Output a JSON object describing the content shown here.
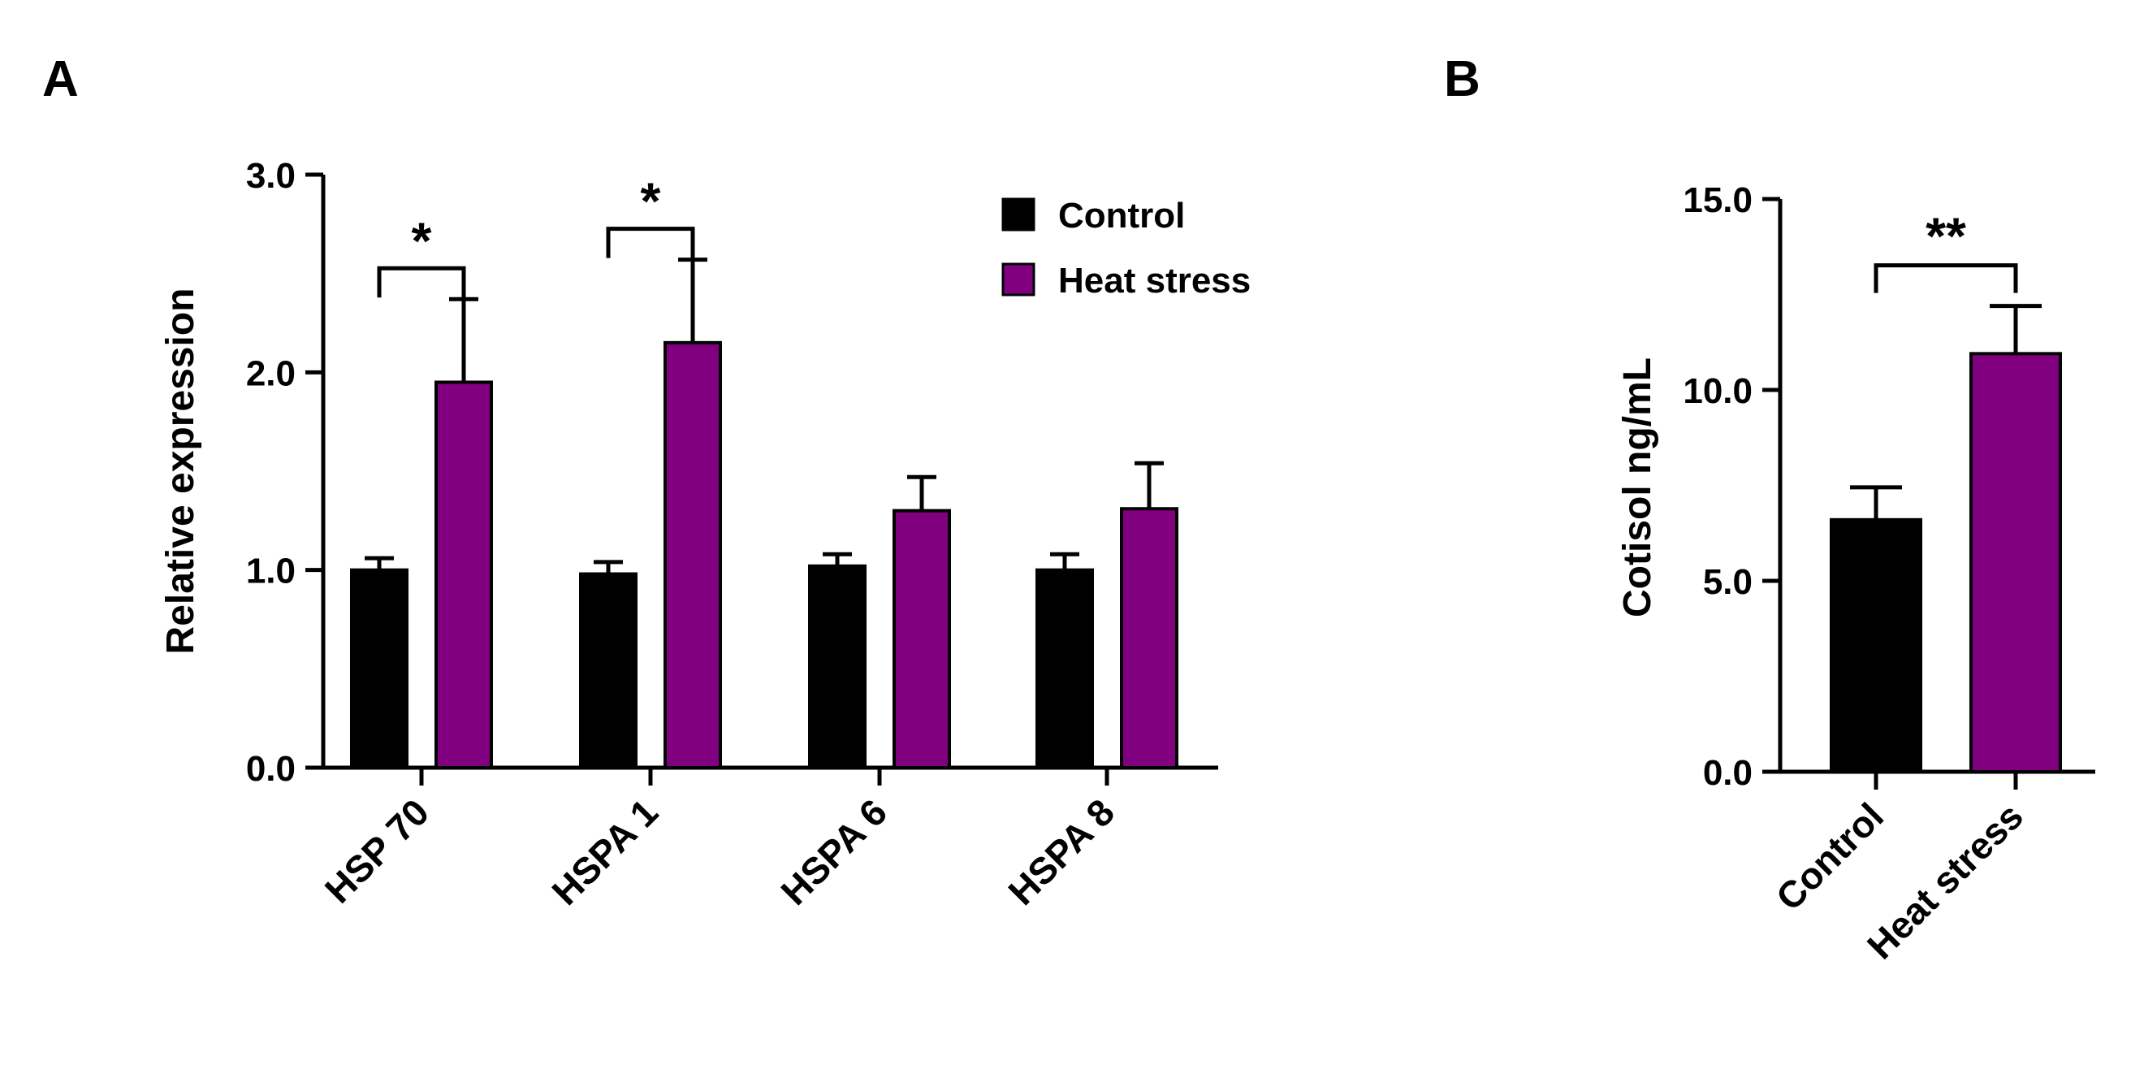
{
  "panels": [
    {
      "label": "A"
    },
    {
      "label": "B"
    }
  ],
  "colors": {
    "control": "#000000",
    "heat_stress": "#800080",
    "axis": "#000000"
  },
  "chart_data": [
    {
      "id": "A",
      "type": "bar",
      "title": "",
      "xlabel": "",
      "ylabel": "Relative expression",
      "ylim": [
        0,
        3.0
      ],
      "yticks": [
        0,
        1.0,
        2.0,
        3.0
      ],
      "ytick_labels": [
        "0.0",
        "1.0",
        "2.0",
        "3.0"
      ],
      "categories": [
        "HSP 70",
        "HSPA 1",
        "HSPA 6",
        "HSPA 8"
      ],
      "series": [
        {
          "name": "Control",
          "color": "#000000",
          "values": [
            1.0,
            0.98,
            1.02,
            1.0
          ],
          "errors": [
            0.06,
            0.06,
            0.06,
            0.08
          ]
        },
        {
          "name": "Heat stress",
          "color": "#800080",
          "values": [
            1.95,
            2.15,
            1.3,
            1.31
          ],
          "errors": [
            0.42,
            0.42,
            0.17,
            0.23
          ]
        }
      ],
      "legend": {
        "position": "top-right",
        "entries": [
          "Control",
          "Heat stress"
        ]
      },
      "significance": [
        {
          "category": 0,
          "label": "*"
        },
        {
          "category": 1,
          "label": "*"
        }
      ]
    },
    {
      "id": "B",
      "type": "bar",
      "title": "",
      "xlabel": "",
      "ylabel": "Cotisol ng/mL",
      "ylim": [
        0,
        15.0
      ],
      "yticks": [
        0,
        5.0,
        10.0,
        15.0
      ],
      "ytick_labels": [
        "0.0",
        "5.0",
        "10.0",
        "15.0"
      ],
      "categories": [
        "Control",
        "Heat stress"
      ],
      "values": [
        6.6,
        10.95
      ],
      "errors": [
        0.85,
        1.25
      ],
      "colors": [
        "#000000",
        "#800080"
      ],
      "significance": [
        {
          "between": [
            0,
            1
          ],
          "label": "**"
        }
      ]
    }
  ]
}
